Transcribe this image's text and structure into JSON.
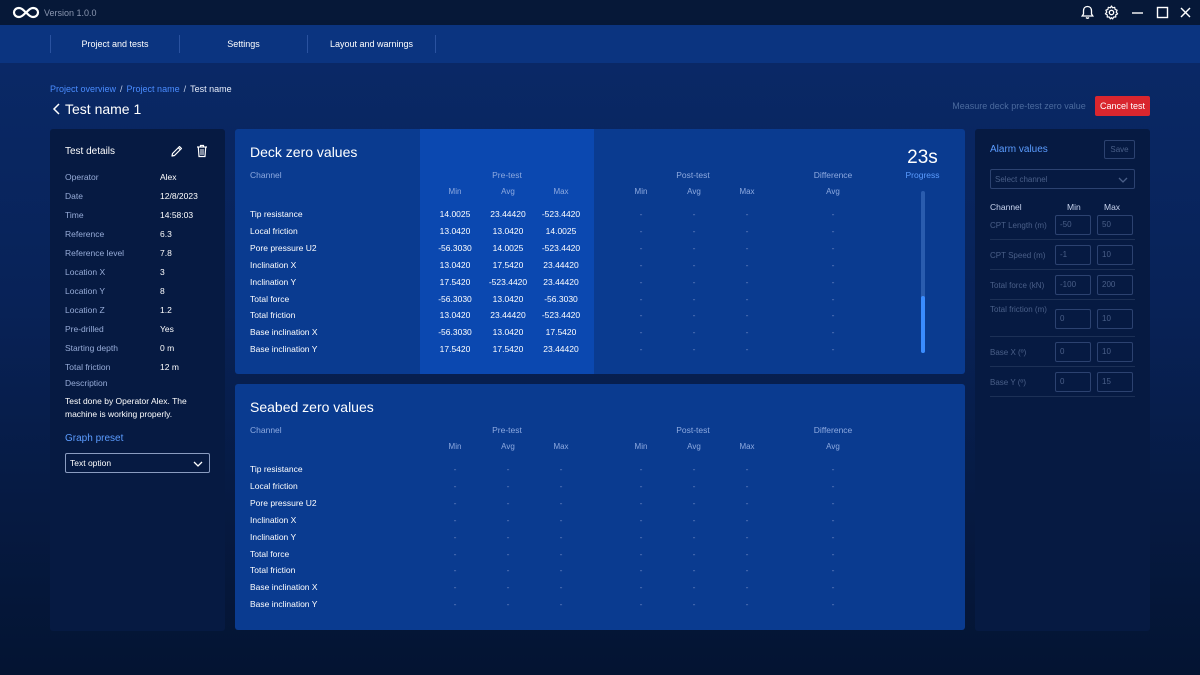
{
  "app": {
    "version": "Version 1.0.0"
  },
  "nav": {
    "tabs": [
      "Project and tests",
      "Settings",
      "Layout and warnings"
    ]
  },
  "breadcrumb": {
    "items": [
      "Project overview",
      "Project name",
      "Test name"
    ]
  },
  "page": {
    "title": "Test name 1",
    "measure_label": "Measure deck pre-test zero value",
    "cancel_label": "Cancel test"
  },
  "test_details": {
    "title": "Test details",
    "rows": [
      {
        "label": "Operator",
        "value": "Alex"
      },
      {
        "label": "Date",
        "value": "12/8/2023"
      },
      {
        "label": "Time",
        "value": "14:58:03"
      },
      {
        "label": "Reference",
        "value": "6.3"
      },
      {
        "label": "Reference level",
        "value": "7.8"
      },
      {
        "label": "Location X",
        "value": "3"
      },
      {
        "label": "Location Y",
        "value": "8"
      },
      {
        "label": "Location Z",
        "value": "1.2"
      },
      {
        "label": "Pre-drilled",
        "value": "Yes"
      },
      {
        "label": "Starting depth",
        "value": "0 m"
      },
      {
        "label": "Total friction",
        "value": "12 m"
      }
    ],
    "description_label": "Description",
    "description": "Test done by Operator Alex. The machine is working properly.",
    "graph_preset_label": "Graph preset",
    "graph_preset_value": "Text option"
  },
  "table_headers": {
    "channel": "Channel",
    "pre_test": "Pre-test",
    "post_test": "Post-test",
    "difference": "Difference",
    "min": "Min",
    "avg": "Avg",
    "max": "Max"
  },
  "deck": {
    "title": "Deck zero values",
    "timer": "23s",
    "progress_label": "Progress",
    "progress": 0.35,
    "rows": [
      {
        "channel": "Tip resistance",
        "pre": [
          "14.0025",
          "23.44420",
          "-523.4420"
        ],
        "post": [
          "-",
          "-",
          "-"
        ],
        "diff": "-"
      },
      {
        "channel": "Local friction",
        "pre": [
          "13.0420",
          "13.0420",
          "14.0025"
        ],
        "post": [
          "-",
          "-",
          "-"
        ],
        "diff": "-"
      },
      {
        "channel": "Pore pressure U2",
        "pre": [
          "-56.3030",
          "14.0025",
          "-523.4420"
        ],
        "post": [
          "-",
          "-",
          "-"
        ],
        "diff": "-"
      },
      {
        "channel": "Inclination X",
        "pre": [
          "13.0420",
          "17.5420",
          "23.44420"
        ],
        "post": [
          "-",
          "-",
          "-"
        ],
        "diff": "-"
      },
      {
        "channel": "Inclination Y",
        "pre": [
          "17.5420",
          "-523.4420",
          "23.44420"
        ],
        "post": [
          "-",
          "-",
          "-"
        ],
        "diff": "-"
      },
      {
        "channel": "Total force",
        "pre": [
          "-56.3030",
          "13.0420",
          "-56.3030"
        ],
        "post": [
          "-",
          "-",
          "-"
        ],
        "diff": "-"
      },
      {
        "channel": "Total friction",
        "pre": [
          "13.0420",
          "23.44420",
          "-523.4420"
        ],
        "post": [
          "-",
          "-",
          "-"
        ],
        "diff": "-"
      },
      {
        "channel": "Base inclination X",
        "pre": [
          "-56.3030",
          "13.0420",
          "17.5420"
        ],
        "post": [
          "-",
          "-",
          "-"
        ],
        "diff": "-"
      },
      {
        "channel": "Base inclination Y",
        "pre": [
          "17.5420",
          "17.5420",
          "23.44420"
        ],
        "post": [
          "-",
          "-",
          "-"
        ],
        "diff": "-"
      }
    ]
  },
  "seabed": {
    "title": "Seabed zero values",
    "rows": [
      {
        "channel": "Tip resistance",
        "pre": [
          "-",
          "-",
          "-"
        ],
        "post": [
          "-",
          "-",
          "-"
        ],
        "diff": "-"
      },
      {
        "channel": "Local friction",
        "pre": [
          "-",
          "-",
          "-"
        ],
        "post": [
          "-",
          "-",
          "-"
        ],
        "diff": "-"
      },
      {
        "channel": "Pore pressure U2",
        "pre": [
          "-",
          "-",
          "-"
        ],
        "post": [
          "-",
          "-",
          "-"
        ],
        "diff": "-"
      },
      {
        "channel": "Inclination X",
        "pre": [
          "-",
          "-",
          "-"
        ],
        "post": [
          "-",
          "-",
          "-"
        ],
        "diff": "-"
      },
      {
        "channel": "Inclination Y",
        "pre": [
          "-",
          "-",
          "-"
        ],
        "post": [
          "-",
          "-",
          "-"
        ],
        "diff": "-"
      },
      {
        "channel": "Total force",
        "pre": [
          "-",
          "-",
          "-"
        ],
        "post": [
          "-",
          "-",
          "-"
        ],
        "diff": "-"
      },
      {
        "channel": "Total friction",
        "pre": [
          "-",
          "-",
          "-"
        ],
        "post": [
          "-",
          "-",
          "-"
        ],
        "diff": "-"
      },
      {
        "channel": "Base inclination X",
        "pre": [
          "-",
          "-",
          "-"
        ],
        "post": [
          "-",
          "-",
          "-"
        ],
        "diff": "-"
      },
      {
        "channel": "Base inclination Y",
        "pre": [
          "-",
          "-",
          "-"
        ],
        "post": [
          "-",
          "-",
          "-"
        ],
        "diff": "-"
      }
    ]
  },
  "alarm": {
    "title": "Alarm values",
    "save_label": "Save",
    "select_placeholder": "Select channel",
    "headers": {
      "channel": "Channel",
      "min": "Min",
      "max": "Max"
    },
    "rows": [
      {
        "label": "CPT Length (m)",
        "min": "-50",
        "max": "50"
      },
      {
        "label": "CPT Speed (m)",
        "min": "-1",
        "max": "10"
      },
      {
        "label": "Total force (kN)",
        "min": "-100",
        "max": "200"
      },
      {
        "label": "Total friction (m)",
        "min": "0",
        "max": "10"
      },
      {
        "label": "Base X (º)",
        "min": "0",
        "max": "10"
      },
      {
        "label": "Base Y (º)",
        "min": "0",
        "max": "15"
      }
    ]
  },
  "colors": {
    "accent": "#3a8cff",
    "link": "#4a8cff",
    "danger": "#d9262e",
    "card": "#0a3b90",
    "panel": "#061a42"
  },
  "icons": [
    "infinity-logo-icon",
    "bell-icon",
    "gear-icon",
    "minimize-icon",
    "maximize-icon",
    "close-icon",
    "chevron-left-icon",
    "pencil-icon",
    "trash-icon",
    "chevron-down-icon"
  ]
}
